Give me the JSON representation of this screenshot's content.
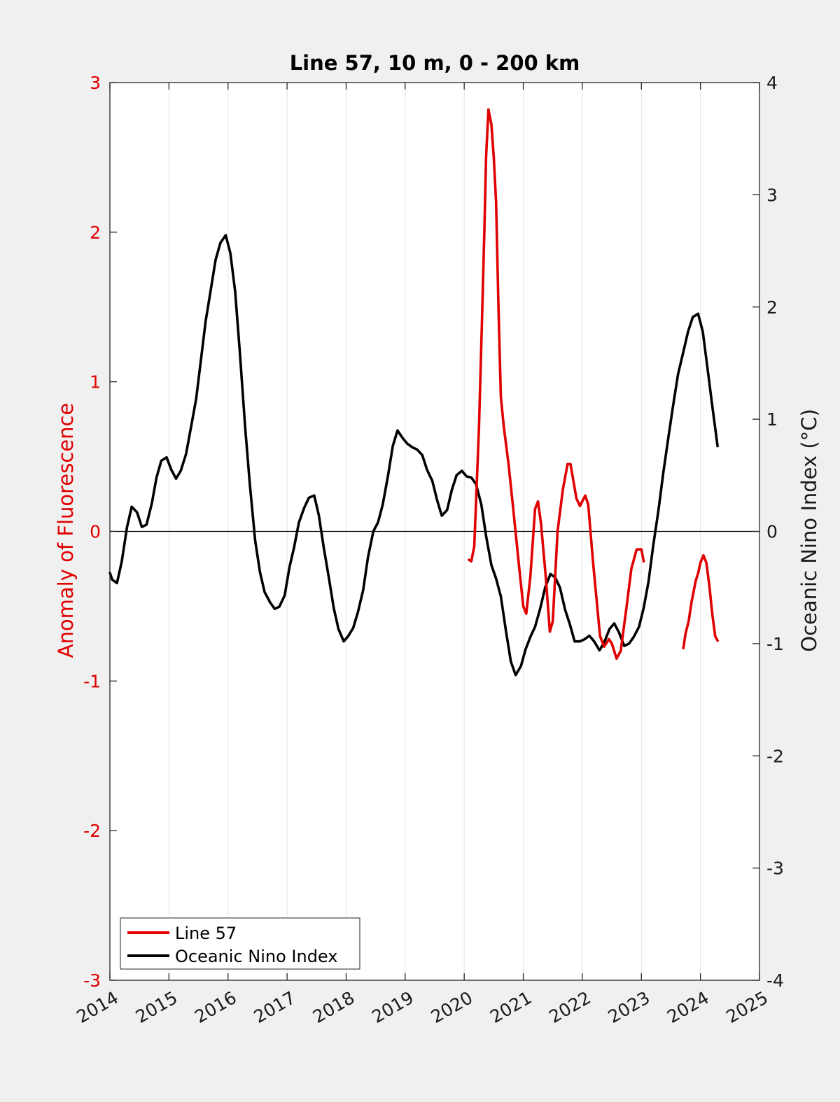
{
  "chart_data": {
    "type": "line",
    "title": "Line 57, 10 m, 0 - 200 km",
    "xlabel": "",
    "ylabel_left": "Anomaly of Fluorescence",
    "ylabel_right": "Oceanic Nino Index (°C)",
    "xlim": [
      2014,
      2025
    ],
    "ylim_left": [
      -3,
      3
    ],
    "ylim_right": [
      -4,
      4
    ],
    "xticks": [
      "2014",
      "2015",
      "2016",
      "2017",
      "2018",
      "2019",
      "2020",
      "2021",
      "2022",
      "2023",
      "2024",
      "2025"
    ],
    "yticks_left": [
      "-3",
      "-2",
      "-1",
      "0",
      "1",
      "2",
      "3"
    ],
    "yticks_right": [
      "-4",
      "-3",
      "-2",
      "-1",
      "0",
      "1",
      "2",
      "3",
      "4"
    ],
    "grid": "vertical",
    "legend_position": "bottom-left",
    "colors": {
      "line57": "#e00000",
      "oni": "#000000",
      "left_axis": "#e00000"
    },
    "series": [
      {
        "name": "Line 57",
        "axis": "left",
        "segments": [
          [
            [
              2020.08,
              -0.19
            ],
            [
              2020.12,
              -0.2
            ],
            [
              2020.17,
              -0.1
            ],
            [
              2020.2,
              0.2
            ],
            [
              2020.25,
              0.7
            ],
            [
              2020.3,
              1.4
            ],
            [
              2020.34,
              2.0
            ],
            [
              2020.37,
              2.5
            ],
            [
              2020.41,
              2.82
            ],
            [
              2020.46,
              2.72
            ],
            [
              2020.5,
              2.5
            ],
            [
              2020.54,
              2.2
            ],
            [
              2020.58,
              1.5
            ],
            [
              2020.62,
              0.9
            ],
            [
              2020.67,
              0.7
            ],
            [
              2020.75,
              0.45
            ],
            [
              2020.83,
              0.15
            ],
            [
              2020.92,
              -0.2
            ],
            [
              2021.0,
              -0.5
            ],
            [
              2021.05,
              -0.55
            ],
            [
              2021.12,
              -0.3
            ],
            [
              2021.2,
              0.15
            ],
            [
              2021.25,
              0.2
            ],
            [
              2021.3,
              0.05
            ],
            [
              2021.38,
              -0.3
            ],
            [
              2021.45,
              -0.67
            ],
            [
              2021.5,
              -0.6
            ],
            [
              2021.58,
              0.0
            ],
            [
              2021.67,
              0.28
            ],
            [
              2021.75,
              0.45
            ],
            [
              2021.8,
              0.45
            ],
            [
              2021.9,
              0.22
            ],
            [
              2021.96,
              0.17
            ],
            [
              2022.05,
              0.24
            ],
            [
              2022.1,
              0.18
            ],
            [
              2022.18,
              -0.2
            ],
            [
              2022.3,
              -0.7
            ],
            [
              2022.37,
              -0.77
            ],
            [
              2022.45,
              -0.72
            ],
            [
              2022.5,
              -0.75
            ],
            [
              2022.58,
              -0.85
            ],
            [
              2022.65,
              -0.8
            ],
            [
              2022.75,
              -0.5
            ],
            [
              2022.83,
              -0.25
            ],
            [
              2022.92,
              -0.12
            ],
            [
              2023.0,
              -0.12
            ],
            [
              2023.04,
              -0.2
            ]
          ],
          [
            [
              2023.71,
              -0.78
            ],
            [
              2023.75,
              -0.68
            ],
            [
              2023.8,
              -0.6
            ],
            [
              2023.85,
              -0.47
            ],
            [
              2023.92,
              -0.33
            ],
            [
              2023.96,
              -0.28
            ],
            [
              2024.0,
              -0.21
            ],
            [
              2024.05,
              -0.16
            ],
            [
              2024.1,
              -0.21
            ],
            [
              2024.15,
              -0.36
            ],
            [
              2024.2,
              -0.55
            ],
            [
              2024.25,
              -0.7
            ],
            [
              2024.29,
              -0.73
            ]
          ]
        ]
      },
      {
        "name": "Oceanic Nino Index",
        "axis": "right",
        "segments": [
          [
            [
              2014.0,
              -0.37
            ],
            [
              2014.04,
              -0.43
            ],
            [
              2014.12,
              -0.46
            ],
            [
              2014.2,
              -0.27
            ],
            [
              2014.29,
              0.04
            ],
            [
              2014.37,
              0.22
            ],
            [
              2014.46,
              0.17
            ],
            [
              2014.54,
              0.04
            ],
            [
              2014.62,
              0.06
            ],
            [
              2014.71,
              0.25
            ],
            [
              2014.79,
              0.48
            ],
            [
              2014.87,
              0.63
            ],
            [
              2014.96,
              0.66
            ],
            [
              2015.04,
              0.55
            ],
            [
              2015.12,
              0.47
            ],
            [
              2015.2,
              0.54
            ],
            [
              2015.29,
              0.69
            ],
            [
              2015.37,
              0.92
            ],
            [
              2015.46,
              1.18
            ],
            [
              2015.54,
              1.52
            ],
            [
              2015.62,
              1.87
            ],
            [
              2015.71,
              2.16
            ],
            [
              2015.79,
              2.42
            ],
            [
              2015.87,
              2.57
            ],
            [
              2015.96,
              2.64
            ],
            [
              2016.04,
              2.48
            ],
            [
              2016.12,
              2.14
            ],
            [
              2016.2,
              1.6
            ],
            [
              2016.29,
              0.93
            ],
            [
              2016.37,
              0.42
            ],
            [
              2016.46,
              -0.08
            ],
            [
              2016.54,
              -0.36
            ],
            [
              2016.62,
              -0.54
            ],
            [
              2016.71,
              -0.63
            ],
            [
              2016.79,
              -0.69
            ],
            [
              2016.87,
              -0.67
            ],
            [
              2016.96,
              -0.57
            ],
            [
              2017.04,
              -0.32
            ],
            [
              2017.12,
              -0.14
            ],
            [
              2017.2,
              0.08
            ],
            [
              2017.29,
              0.21
            ],
            [
              2017.37,
              0.3
            ],
            [
              2017.46,
              0.32
            ],
            [
              2017.54,
              0.14
            ],
            [
              2017.62,
              -0.14
            ],
            [
              2017.71,
              -0.42
            ],
            [
              2017.79,
              -0.68
            ],
            [
              2017.87,
              -0.87
            ],
            [
              2017.96,
              -0.98
            ],
            [
              2018.04,
              -0.93
            ],
            [
              2018.12,
              -0.86
            ],
            [
              2018.2,
              -0.72
            ],
            [
              2018.29,
              -0.52
            ],
            [
              2018.37,
              -0.23
            ],
            [
              2018.46,
              0.0
            ],
            [
              2018.54,
              0.08
            ],
            [
              2018.62,
              0.24
            ],
            [
              2018.71,
              0.5
            ],
            [
              2018.79,
              0.76
            ],
            [
              2018.87,
              0.9
            ],
            [
              2018.96,
              0.83
            ],
            [
              2019.04,
              0.78
            ],
            [
              2019.12,
              0.75
            ],
            [
              2019.2,
              0.73
            ],
            [
              2019.29,
              0.68
            ],
            [
              2019.37,
              0.55
            ],
            [
              2019.46,
              0.45
            ],
            [
              2019.54,
              0.28
            ],
            [
              2019.62,
              0.14
            ],
            [
              2019.71,
              0.19
            ],
            [
              2019.79,
              0.37
            ],
            [
              2019.87,
              0.5
            ],
            [
              2019.96,
              0.54
            ],
            [
              2020.04,
              0.49
            ],
            [
              2020.12,
              0.48
            ],
            [
              2020.2,
              0.42
            ],
            [
              2020.29,
              0.24
            ],
            [
              2020.37,
              -0.04
            ],
            [
              2020.46,
              -0.3
            ],
            [
              2020.54,
              -0.42
            ],
            [
              2020.62,
              -0.58
            ],
            [
              2020.71,
              -0.9
            ],
            [
              2020.79,
              -1.16
            ],
            [
              2020.87,
              -1.28
            ],
            [
              2020.96,
              -1.2
            ],
            [
              2021.04,
              -1.05
            ],
            [
              2021.12,
              -0.94
            ],
            [
              2021.2,
              -0.85
            ],
            [
              2021.29,
              -0.68
            ],
            [
              2021.37,
              -0.5
            ],
            [
              2021.46,
              -0.38
            ],
            [
              2021.54,
              -0.41
            ],
            [
              2021.62,
              -0.5
            ],
            [
              2021.71,
              -0.7
            ],
            [
              2021.79,
              -0.83
            ],
            [
              2021.87,
              -0.98
            ],
            [
              2021.96,
              -0.98
            ],
            [
              2022.04,
              -0.96
            ],
            [
              2022.12,
              -0.93
            ],
            [
              2022.2,
              -0.98
            ],
            [
              2022.29,
              -1.06
            ],
            [
              2022.37,
              -0.99
            ],
            [
              2022.46,
              -0.87
            ],
            [
              2022.54,
              -0.82
            ],
            [
              2022.62,
              -0.9
            ],
            [
              2022.71,
              -1.02
            ],
            [
              2022.79,
              -1.0
            ],
            [
              2022.87,
              -0.94
            ],
            [
              2022.96,
              -0.85
            ],
            [
              2023.04,
              -0.68
            ],
            [
              2023.12,
              -0.45
            ],
            [
              2023.2,
              -0.13
            ],
            [
              2023.29,
              0.19
            ],
            [
              2023.37,
              0.52
            ],
            [
              2023.46,
              0.85
            ],
            [
              2023.54,
              1.13
            ],
            [
              2023.62,
              1.4
            ],
            [
              2023.71,
              1.6
            ],
            [
              2023.79,
              1.78
            ],
            [
              2023.87,
              1.91
            ],
            [
              2023.96,
              1.94
            ],
            [
              2024.04,
              1.78
            ],
            [
              2024.12,
              1.45
            ],
            [
              2024.2,
              1.12
            ],
            [
              2024.29,
              0.76
            ]
          ]
        ]
      }
    ]
  }
}
